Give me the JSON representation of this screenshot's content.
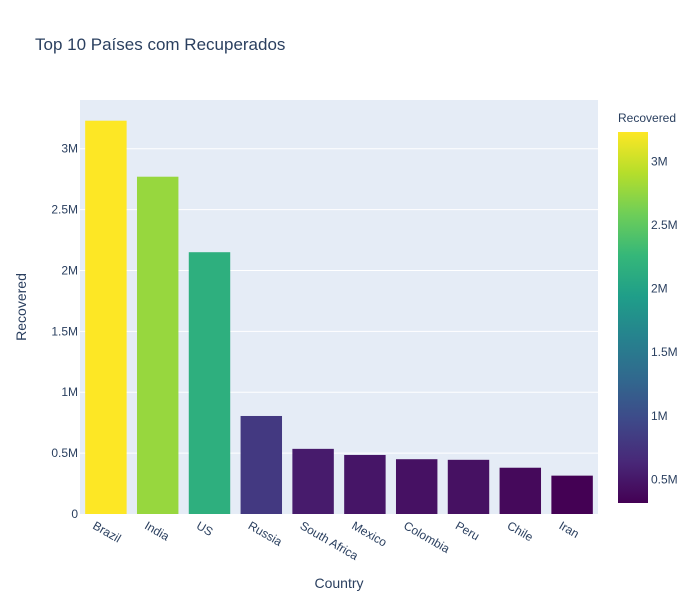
{
  "chart_data": {
    "type": "bar",
    "title": "Top 10 Países com Recuperados",
    "xlabel": "Country",
    "ylabel": "Recovered",
    "categories": [
      "Brazil",
      "India",
      "US",
      "Russia",
      "South Africa",
      "Mexico",
      "Colombia",
      "Peru",
      "Chile",
      "Iran"
    ],
    "values": [
      3230000,
      2770000,
      2150000,
      805000,
      535000,
      485000,
      450000,
      445000,
      380000,
      315000
    ],
    "ylim": [
      0,
      3400000
    ],
    "yticks": [
      {
        "value": 0,
        "label": "0"
      },
      {
        "value": 500000,
        "label": "0.5M"
      },
      {
        "value": 1000000,
        "label": "1M"
      },
      {
        "value": 1500000,
        "label": "1.5M"
      },
      {
        "value": 2000000,
        "label": "2M"
      },
      {
        "value": 2500000,
        "label": "2.5M"
      },
      {
        "value": 3000000,
        "label": "3M"
      }
    ],
    "grid": true,
    "colorscale": "Viridis",
    "colorbar": {
      "title": "Recovered",
      "range": [
        315000,
        3230000
      ],
      "ticks": [
        {
          "value": 500000,
          "label": "0.5M"
        },
        {
          "value": 1000000,
          "label": "1M"
        },
        {
          "value": 1500000,
          "label": "1.5M"
        },
        {
          "value": 2000000,
          "label": "2M"
        },
        {
          "value": 2500000,
          "label": "2.5M"
        },
        {
          "value": 3000000,
          "label": "3M"
        }
      ]
    },
    "colors": {
      "plot_background": "#e5ecf6",
      "gridline": "#ffffff",
      "text": "#2a3f5f"
    }
  }
}
